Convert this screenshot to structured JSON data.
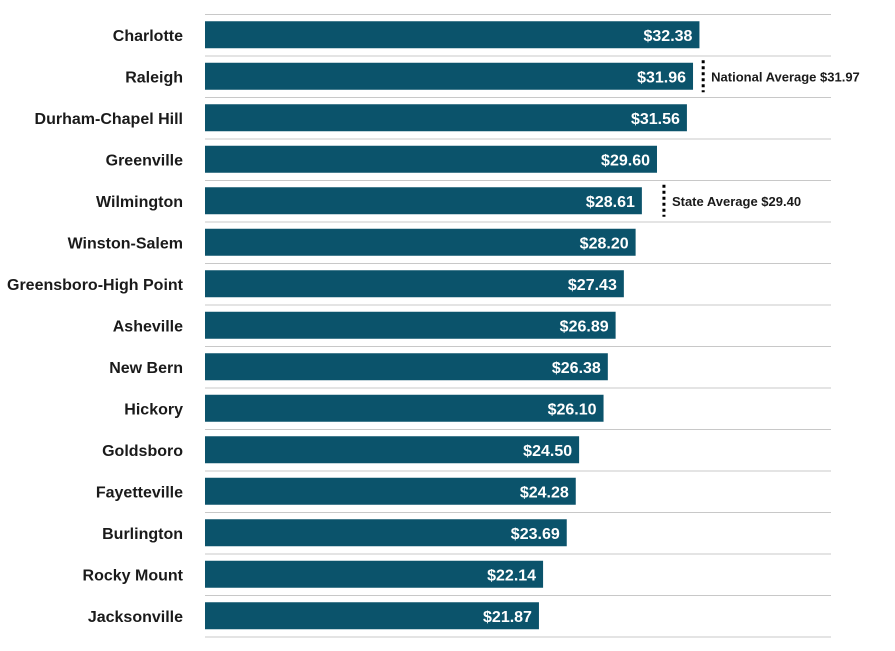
{
  "colors": {
    "bar": "#0b536b",
    "value_text": "#ffffff",
    "label_text": "#1a1a1a",
    "gridline": "#c8c8c8"
  },
  "chart_data": {
    "type": "bar",
    "orientation": "horizontal",
    "title": "",
    "xlabel": "",
    "ylabel": "",
    "xlim": [
      0,
      40
    ],
    "grid": true,
    "categories": [
      "Charlotte",
      "Raleigh",
      "Durham-Chapel Hill",
      "Greenville",
      "Wilmington",
      "Winston-Salem",
      "Greensboro-High Point",
      "Asheville",
      "New Bern",
      "Hickory",
      "Goldsboro",
      "Fayetteville",
      "Burlington",
      "Rocky Mount",
      "Jacksonville"
    ],
    "values": [
      32.38,
      31.96,
      31.56,
      29.6,
      28.61,
      28.2,
      27.43,
      26.89,
      26.38,
      26.1,
      24.5,
      24.28,
      23.69,
      22.14,
      21.87
    ],
    "value_labels": [
      "$32.38",
      "$31.96",
      "$31.56",
      "$29.60",
      "$28.61",
      "$28.20",
      "$27.43",
      "$26.89",
      "$26.38",
      "$26.10",
      "$24.50",
      "$24.28",
      "$23.69",
      "$22.14",
      "$21.87"
    ],
    "annotations": [
      {
        "label": "National Average $31.97",
        "value": 31.97,
        "category": "Raleigh"
      },
      {
        "label": "State Average $29.40",
        "value": 29.4,
        "category": "Wilmington"
      }
    ]
  }
}
